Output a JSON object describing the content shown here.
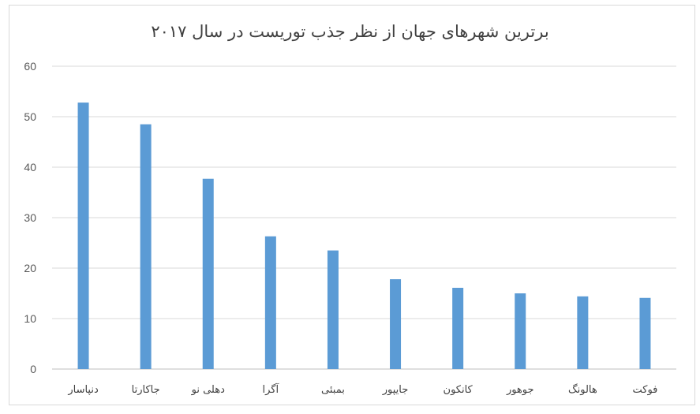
{
  "chart_data": {
    "type": "bar",
    "title": "برترین شهرهای جهان از نظر جذب توریست در سال ۲۰۱۷",
    "xlabel": "",
    "ylabel": "",
    "ylim": [
      0,
      60
    ],
    "yticks": [
      "0",
      "10",
      "20",
      "30",
      "40",
      "50",
      "60"
    ],
    "grid": true,
    "legend": "none",
    "color": "#5b9bd5",
    "categories": [
      "دنپاسار",
      "جاکارتا",
      "دهلی نو",
      "آگرا",
      "بمبئی",
      "جایپور",
      "کانکون",
      "جوهور",
      "هالونگ",
      "فوکت"
    ],
    "values": [
      52.8,
      48.5,
      37.7,
      26.3,
      23.5,
      17.8,
      16.1,
      15,
      14.4,
      14.1
    ]
  }
}
